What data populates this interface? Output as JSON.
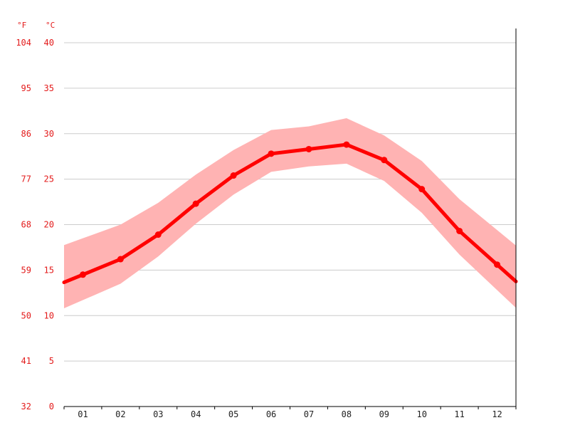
{
  "chart_data": {
    "type": "line",
    "title": "",
    "xlabel": "",
    "ylabel": "",
    "units": {
      "left": "°F",
      "right": "°C"
    },
    "categories": [
      "01",
      "02",
      "03",
      "04",
      "05",
      "06",
      "07",
      "08",
      "09",
      "10",
      "11",
      "12"
    ],
    "y_ticks_c": [
      0,
      5,
      10,
      15,
      20,
      25,
      30,
      35,
      40
    ],
    "y_ticks_f": [
      "32",
      "41",
      "50",
      "59",
      "68",
      "77",
      "86",
      "95",
      "104"
    ],
    "ylim": [
      0,
      40
    ],
    "grid": true,
    "series": [
      {
        "values": [
          14.5,
          16.2,
          18.9,
          22.3,
          25.4,
          27.8,
          28.3,
          28.8,
          27.1,
          23.9,
          19.3,
          15.6
        ]
      }
    ],
    "band": {
      "upper": [
        18.5,
        20.0,
        22.4,
        25.5,
        28.2,
        30.4,
        30.8,
        31.7,
        29.8,
        27.0,
        22.8,
        19.4
      ],
      "lower": [
        11.7,
        13.5,
        16.5,
        20.1,
        23.3,
        25.8,
        26.4,
        26.7,
        24.8,
        21.3,
        16.7,
        12.8
      ]
    },
    "colors": {
      "line": "#ff0000",
      "band": "#ffb3b3",
      "grid": "#cccccc"
    }
  }
}
